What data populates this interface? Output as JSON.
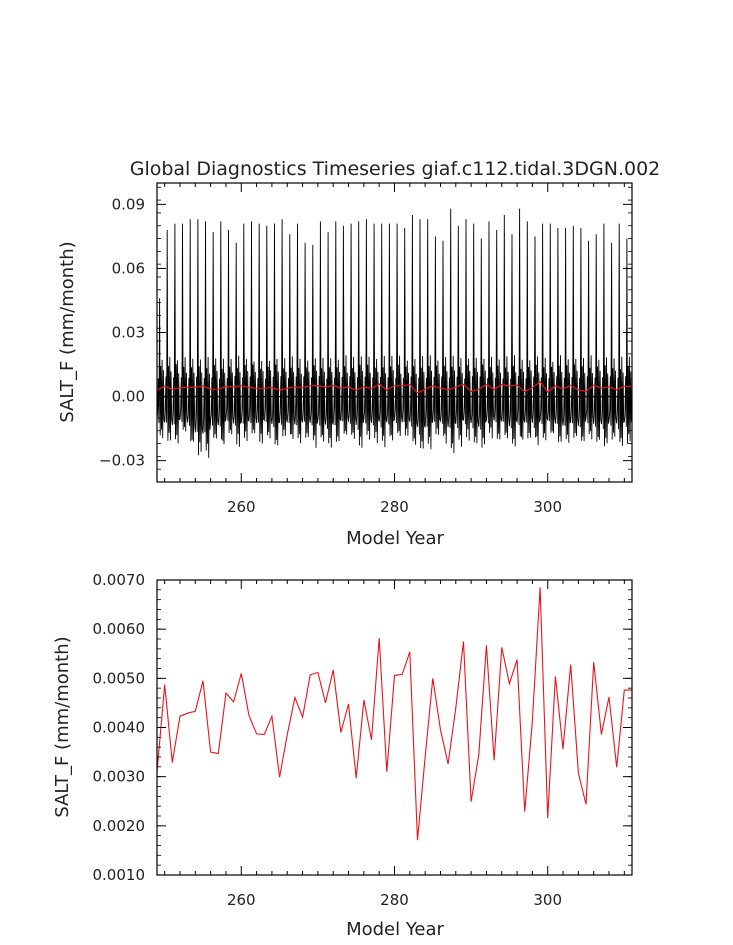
{
  "chart_data": [
    {
      "type": "line",
      "title": "Global Diagnostics Timeseries giaf.c112.tidal.3DGN.002",
      "xlabel": "Model Year",
      "ylabel": "SALT_F (mm/month)",
      "xlim": [
        249,
        311
      ],
      "ylim": [
        -0.04,
        0.1
      ],
      "xticks": [
        260,
        280,
        300
      ],
      "xtick_labels": [
        "260",
        "280",
        "300"
      ],
      "yticks": [
        -0.03,
        0.0,
        0.03,
        0.06,
        0.09
      ],
      "ytick_labels": [
        "−0.03",
        "0.00",
        "0.03",
        "0.06",
        "0.09"
      ],
      "reference_line_y": 0.0,
      "grid": false,
      "series": [
        {
          "color": "#000000",
          "description_of_sampling": "monthly",
          "start_year": 249,
          "annual_peaks": [
            0.046,
            0.078,
            0.081,
            0.081,
            0.083,
            0.083,
            0.082,
            0.077,
            0.082,
            0.078,
            0.072,
            0.081,
            0.082,
            0.081,
            0.08,
            0.081,
            0.083,
            0.076,
            0.081,
            0.072,
            0.071,
            0.082,
            0.077,
            0.082,
            0.08,
            0.081,
            0.082,
            0.083,
            0.081,
            0.081,
            0.081,
            0.081,
            0.079,
            0.085,
            0.083,
            0.083,
            0.075,
            0.073,
            0.088,
            0.08,
            0.083,
            0.081,
            0.074,
            0.082,
            0.078,
            0.085,
            0.076,
            0.088,
            0.082,
            0.075,
            0.081,
            0.081,
            0.079,
            0.079,
            0.08,
            0.079,
            0.073,
            0.076,
            0.081,
            0.072,
            0.081,
            0.074,
            0.075
          ],
          "annual_minima": [
            -0.022,
            -0.023,
            -0.025,
            -0.02,
            -0.026,
            -0.031,
            -0.032,
            -0.024,
            -0.026,
            -0.021,
            -0.025,
            -0.023,
            -0.021,
            -0.024,
            -0.021,
            -0.026,
            -0.022,
            -0.023,
            -0.025,
            -0.022,
            -0.026,
            -0.023,
            -0.027,
            -0.024,
            -0.021,
            -0.023,
            -0.026,
            -0.022,
            -0.024,
            -0.025,
            -0.023,
            -0.021,
            -0.022,
            -0.025,
            -0.03,
            -0.027,
            -0.022,
            -0.024,
            -0.028,
            -0.025,
            -0.022,
            -0.025,
            -0.027,
            -0.021,
            -0.023,
            -0.022,
            -0.026,
            -0.024,
            -0.022,
            -0.025,
            -0.023,
            -0.021,
            -0.024,
            -0.026,
            -0.022,
            -0.025,
            -0.021,
            -0.024,
            -0.027,
            -0.023,
            -0.026,
            -0.025,
            -0.022
          ]
        },
        {
          "color": "#e8141c",
          "description_of_sampling": "annual mean",
          "x": [
            249,
            250,
            251,
            252,
            253,
            254,
            255,
            256,
            257,
            258,
            259,
            260,
            261,
            262,
            263,
            264,
            265,
            266,
            267,
            268,
            269,
            270,
            271,
            272,
            273,
            274,
            275,
            276,
            277,
            278,
            279,
            280,
            281,
            282,
            283,
            284,
            285,
            286,
            287,
            288,
            289,
            290,
            291,
            292,
            293,
            294,
            295,
            296,
            297,
            298,
            299,
            300,
            301,
            302,
            303,
            304,
            305,
            306,
            307,
            308,
            309,
            310,
            311
          ],
          "values": [
            0.0031,
            0.00487,
            0.00329,
            0.00423,
            0.00429,
            0.00433,
            0.00495,
            0.0035,
            0.00347,
            0.0047,
            0.00452,
            0.0051,
            0.00425,
            0.00387,
            0.00386,
            0.00423,
            0.00299,
            0.00385,
            0.00461,
            0.00421,
            0.00507,
            0.00512,
            0.0045,
            0.00517,
            0.0039,
            0.00448,
            0.00297,
            0.00456,
            0.00375,
            0.00582,
            0.0031,
            0.00506,
            0.00508,
            0.00554,
            0.00171,
            0.00339,
            0.005,
            0.00395,
            0.00326,
            0.0044,
            0.00575,
            0.00249,
            0.00345,
            0.00567,
            0.00333,
            0.00563,
            0.00489,
            0.00538,
            0.00229,
            0.00414,
            0.00685,
            0.00216,
            0.00504,
            0.00356,
            0.00528,
            0.00307,
            0.00244,
            0.00533,
            0.00386,
            0.00462,
            0.00319,
            0.00476,
            0.00476
          ]
        }
      ]
    },
    {
      "type": "line",
      "title": "",
      "xlabel": "Model Year",
      "ylabel": "SALT_F (mm/month)",
      "xlim": [
        249,
        311
      ],
      "ylim": [
        0.001,
        0.007
      ],
      "xticks": [
        260,
        280,
        300
      ],
      "xtick_labels": [
        "260",
        "280",
        "300"
      ],
      "yticks": [
        0.001,
        0.002,
        0.003,
        0.004,
        0.005,
        0.006,
        0.007
      ],
      "ytick_labels": [
        "0.0010",
        "0.0020",
        "0.0030",
        "0.0040",
        "0.0050",
        "0.0060",
        "0.0070"
      ],
      "grid": false,
      "series": [
        {
          "color": "#e8141c",
          "x": [
            249,
            250,
            251,
            252,
            253,
            254,
            255,
            256,
            257,
            258,
            259,
            260,
            261,
            262,
            263,
            264,
            265,
            266,
            267,
            268,
            269,
            270,
            271,
            272,
            273,
            274,
            275,
            276,
            277,
            278,
            279,
            280,
            281,
            282,
            283,
            284,
            285,
            286,
            287,
            288,
            289,
            290,
            291,
            292,
            293,
            294,
            295,
            296,
            297,
            298,
            299,
            300,
            301,
            302,
            303,
            304,
            305,
            306,
            307,
            308,
            309,
            310,
            311
          ],
          "values": [
            0.0031,
            0.00487,
            0.00329,
            0.00423,
            0.00429,
            0.00433,
            0.00495,
            0.0035,
            0.00347,
            0.0047,
            0.00452,
            0.0051,
            0.00425,
            0.00387,
            0.00386,
            0.00423,
            0.00299,
            0.00385,
            0.00461,
            0.00421,
            0.00507,
            0.00512,
            0.0045,
            0.00517,
            0.0039,
            0.00448,
            0.00297,
            0.00456,
            0.00375,
            0.00582,
            0.0031,
            0.00506,
            0.00508,
            0.00554,
            0.00171,
            0.00339,
            0.005,
            0.00395,
            0.00326,
            0.0044,
            0.00575,
            0.00249,
            0.00345,
            0.00567,
            0.00333,
            0.00563,
            0.00489,
            0.00538,
            0.00229,
            0.00414,
            0.00685,
            0.00216,
            0.00504,
            0.00356,
            0.00528,
            0.00307,
            0.00244,
            0.00533,
            0.00386,
            0.00462,
            0.00319,
            0.00476,
            0.00476
          ]
        }
      ]
    }
  ]
}
